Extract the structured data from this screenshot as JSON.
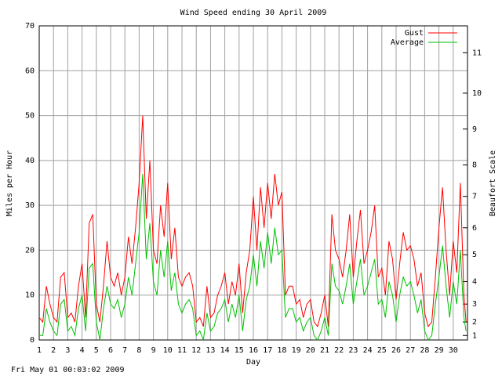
{
  "chart_data": {
    "type": "line",
    "title": "Wind Speed ending 30 April 2009",
    "xlabel": "Day",
    "ylabel": "Miles per Hour",
    "y2label": "Beaufort Scale",
    "footer": "Fri May 01 00:03:02 2009",
    "grid": true,
    "xlim": [
      1,
      31
    ],
    "xticks": [
      1,
      2,
      3,
      4,
      5,
      6,
      7,
      8,
      9,
      10,
      11,
      12,
      13,
      14,
      15,
      16,
      17,
      18,
      19,
      20,
      21,
      22,
      23,
      24,
      25,
      26,
      27,
      28,
      29,
      30
    ],
    "ylim": [
      0,
      70
    ],
    "yticks": [
      0,
      10,
      20,
      30,
      40,
      50,
      60,
      70
    ],
    "y2lim": [
      0,
      70
    ],
    "y2ticks": [
      1,
      {
        "value": 4,
        "label": "2"
      },
      {
        "value": 8,
        "label": "3"
      },
      {
        "value": 13,
        "label": "4"
      },
      {
        "value": 19,
        "label": "5"
      },
      {
        "value": 25,
        "label": "6"
      },
      {
        "value": 32,
        "label": "7"
      },
      {
        "value": 39,
        "label": "8"
      },
      {
        "value": 47,
        "label": "9"
      },
      {
        "value": 55,
        "label": "10"
      },
      {
        "value": 64,
        "label": "11"
      }
    ],
    "x": [
      1,
      1.25,
      1.5,
      1.75,
      2,
      2.25,
      2.5,
      2.75,
      3,
      3.25,
      3.5,
      3.75,
      4,
      4.25,
      4.5,
      4.75,
      5,
      5.25,
      5.5,
      5.75,
      6,
      6.25,
      6.5,
      6.75,
      7,
      7.25,
      7.5,
      7.75,
      8,
      8.25,
      8.5,
      8.75,
      9,
      9.25,
      9.5,
      9.75,
      10,
      10.25,
      10.5,
      10.75,
      11,
      11.25,
      11.5,
      11.75,
      12,
      12.25,
      12.5,
      12.75,
      13,
      13.25,
      13.5,
      13.75,
      14,
      14.25,
      14.5,
      14.75,
      15,
      15.25,
      15.5,
      15.75,
      16,
      16.25,
      16.5,
      16.75,
      17,
      17.25,
      17.5,
      17.75,
      18,
      18.25,
      18.5,
      18.75,
      19,
      19.25,
      19.5,
      19.75,
      20,
      20.25,
      20.5,
      20.75,
      21,
      21.25,
      21.5,
      21.75,
      22,
      22.25,
      22.5,
      22.75,
      23,
      23.25,
      23.5,
      23.75,
      24,
      24.25,
      24.5,
      24.75,
      25,
      25.25,
      25.5,
      25.75,
      26,
      26.25,
      26.5,
      26.75,
      27,
      27.25,
      27.5,
      27.75,
      28,
      28.25,
      28.5,
      28.75,
      29,
      29.25,
      29.5,
      29.75,
      30,
      30.25,
      30.5,
      30.75,
      30.9
    ],
    "series": [
      {
        "name": "Gust",
        "color": "#ff0000",
        "values": [
          5,
          4,
          12,
          8,
          5,
          4,
          14,
          15,
          5,
          6,
          4,
          12,
          17,
          5,
          26,
          28,
          8,
          4,
          12,
          22,
          14,
          12,
          15,
          10,
          14,
          23,
          17,
          25,
          35,
          50,
          27,
          40,
          20,
          17,
          30,
          23,
          35,
          18,
          25,
          14,
          12,
          14,
          15,
          12,
          4,
          5,
          3,
          12,
          5,
          6,
          10,
          12,
          15,
          8,
          13,
          10,
          17,
          6,
          15,
          20,
          32,
          20,
          34,
          25,
          35,
          27,
          37,
          30,
          33,
          10,
          12,
          12,
          8,
          9,
          5,
          8,
          9,
          4,
          3,
          6,
          10,
          3,
          28,
          20,
          18,
          14,
          20,
          28,
          14,
          22,
          29,
          17,
          20,
          24,
          30,
          14,
          16,
          10,
          22,
          18,
          9,
          17,
          24,
          20,
          21,
          18,
          12,
          15,
          6,
          3,
          4,
          14,
          25,
          34,
          20,
          10,
          22,
          15,
          35,
          10,
          4
        ]
      },
      {
        "name": "Average",
        "color": "#00c000",
        "values": [
          1,
          1,
          7,
          4,
          2,
          1,
          8,
          9,
          2,
          3,
          1,
          7,
          10,
          2,
          16,
          17,
          4,
          0,
          7,
          12,
          8,
          7,
          9,
          5,
          8,
          14,
          10,
          17,
          24,
          37,
          18,
          26,
          13,
          10,
          20,
          14,
          22,
          11,
          15,
          8,
          6,
          8,
          9,
          7,
          1,
          2,
          0,
          6,
          2,
          3,
          6,
          7,
          9,
          4,
          8,
          5,
          10,
          2,
          9,
          12,
          19,
          12,
          22,
          16,
          24,
          17,
          25,
          19,
          20,
          5,
          7,
          7,
          4,
          5,
          2,
          4,
          5,
          1,
          0,
          2,
          5,
          1,
          17,
          12,
          11,
          8,
          12,
          17,
          8,
          13,
          18,
          10,
          12,
          15,
          18,
          8,
          9,
          5,
          13,
          10,
          4,
          10,
          14,
          12,
          13,
          10,
          6,
          9,
          2,
          0,
          1,
          8,
          14,
          21,
          12,
          5,
          13,
          8,
          20,
          5,
          2
        ]
      }
    ]
  }
}
